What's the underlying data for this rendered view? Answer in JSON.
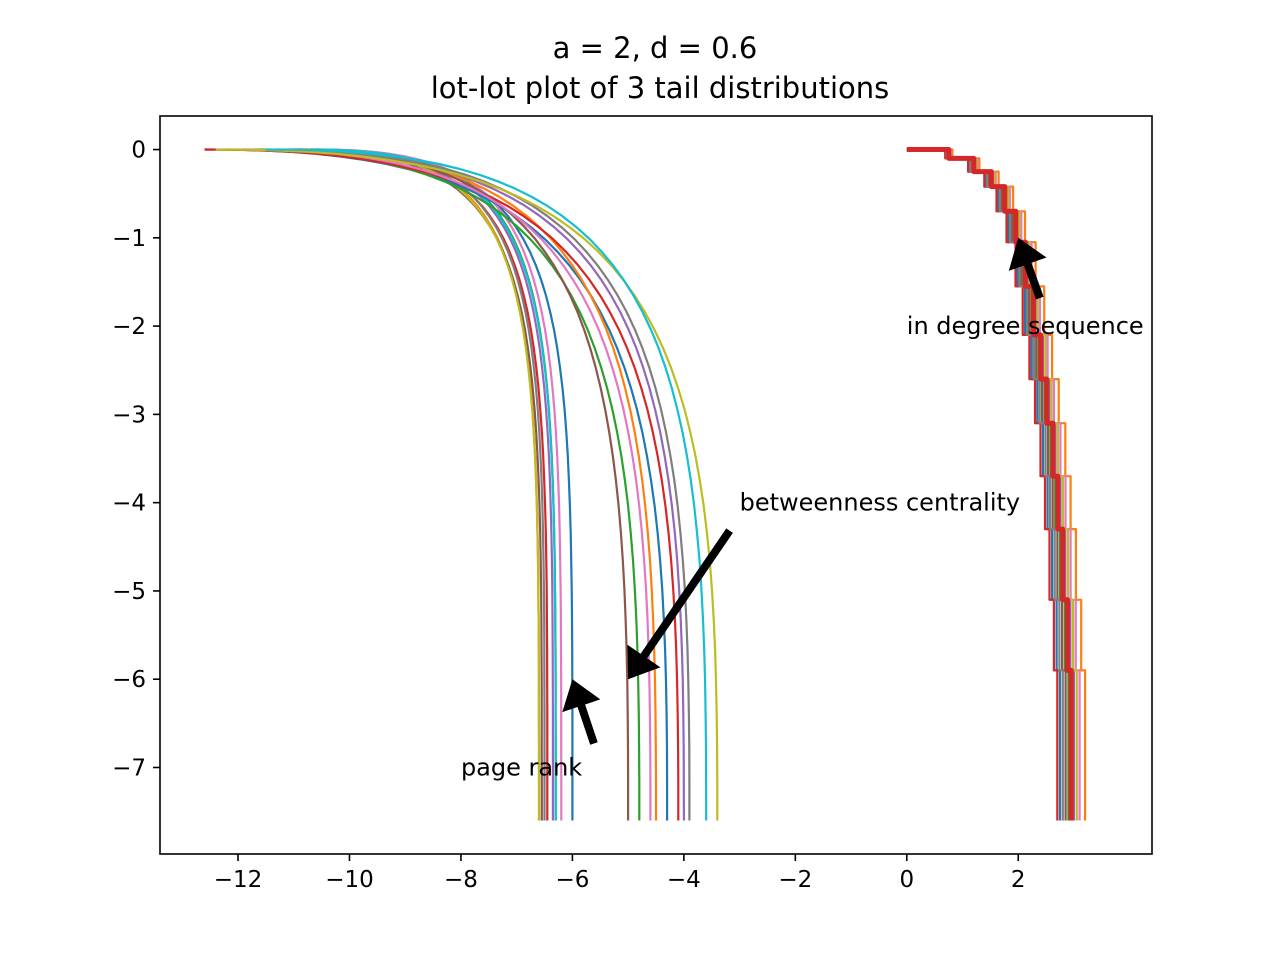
{
  "chart_data": {
    "type": "line",
    "title": "a = 2, d = 0.6",
    "subtitle": "lot-lot plot of 3 tail distributions",
    "xlabel": "",
    "ylabel": "",
    "xlim": [
      -13.4,
      4.4
    ],
    "ylim": [
      -7.98,
      0.38
    ],
    "xticks": [
      -12,
      -10,
      -8,
      -6,
      -4,
      -2,
      0,
      2
    ],
    "xtick_labels": [
      "−12",
      "−10",
      "−8",
      "−6",
      "−4",
      "−2",
      "0",
      "2"
    ],
    "yticks": [
      0,
      -1,
      -2,
      -3,
      -4,
      -5,
      -6,
      -7
    ],
    "ytick_labels": [
      "0",
      "−1",
      "−2",
      "−3",
      "−4",
      "−5",
      "−6",
      "−7"
    ],
    "grid": false,
    "legend": "none",
    "palette": [
      "#1f77b4",
      "#ff7f0e",
      "#2ca02c",
      "#d62728",
      "#9467bd",
      "#8c564b",
      "#e377c2",
      "#7f7f7f",
      "#bcbd22",
      "#17becf"
    ],
    "groups": [
      {
        "label": "page rank",
        "series_count": 10,
        "x_start": [
          -11.0,
          -10.8,
          -10.6,
          -10.9,
          -10.7,
          -11.1,
          -10.6,
          -10.8,
          -10.9,
          -10.7
        ],
        "x_end": [
          -6.0,
          -6.6,
          -6.3,
          -6.45,
          -6.35,
          -6.55,
          -6.2,
          -6.5,
          -6.6,
          -6.3
        ],
        "y_end": -7.6
      },
      {
        "label": "betweenness centrality",
        "series_count": 10,
        "x_start": [
          -12.6,
          -11.6,
          -12.2,
          -12.6,
          -11.9,
          -11.3,
          -12.0,
          -11.7,
          -12.4,
          -11.5
        ],
        "x_end": [
          -4.3,
          -4.5,
          -4.8,
          -4.1,
          -4.0,
          -5.0,
          -4.6,
          -3.9,
          -3.4,
          -3.6
        ],
        "y_end": -7.6
      },
      {
        "label": "in degree sequence",
        "series_count": 10,
        "steps_x": [
          0.0,
          0.69,
          1.1,
          1.39,
          1.61,
          1.79,
          1.95,
          2.08,
          2.2,
          2.3,
          2.4,
          2.48,
          2.56,
          2.64,
          2.7
        ],
        "steps_y": [
          0.0,
          -0.1,
          -0.25,
          -0.42,
          -0.7,
          -1.05,
          -1.55,
          -2.1,
          -2.6,
          -3.1,
          -3.7,
          -4.3,
          -5.1,
          -5.9,
          -7.6
        ],
        "x_end_spread": [
          2.75,
          3.2,
          2.9,
          2.7,
          3.0,
          2.85,
          3.1,
          2.8,
          3.05,
          2.95
        ]
      }
    ],
    "annotations": [
      {
        "text": "page rank",
        "text_x": -8,
        "text_y": -7,
        "arrow_to_x": -6,
        "arrow_to_y": -6
      },
      {
        "text": "betweenness centrality",
        "text_x": -3,
        "text_y": -4,
        "arrow_to_x": -5,
        "arrow_to_y": -6
      },
      {
        "text": "in degree sequence",
        "text_x": 0,
        "text_y": -2,
        "arrow_to_x": 2,
        "arrow_to_y": -1
      }
    ]
  }
}
